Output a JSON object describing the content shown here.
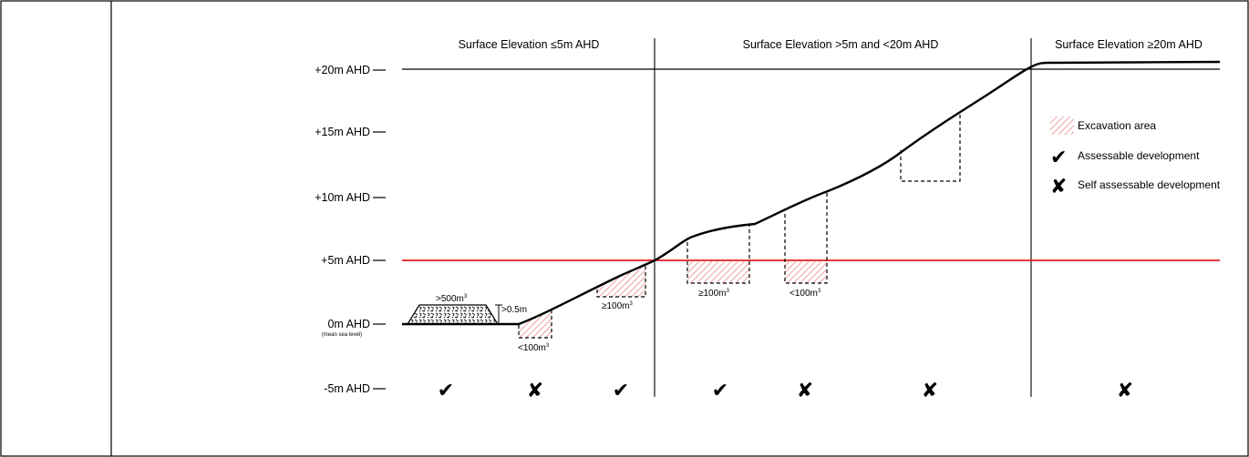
{
  "colors": {
    "line": "#000000",
    "reference": "#e31b1b",
    "hatch": "#e87a7a"
  },
  "zones": [
    {
      "title": "Surface Elevation ≤5m AHD"
    },
    {
      "title": "Surface Elevation >5m and <20m AHD"
    },
    {
      "title": "Surface Elevation ≥20m AHD"
    }
  ],
  "axis": {
    "labels": [
      "+20m AHD",
      "+15m AHD",
      "+10m AHD",
      "+5m AHD",
      "0m AHD",
      "-5m AHD"
    ],
    "sea_level_note": "(mean sea level)"
  },
  "annotations": {
    "stockpile_volume": ">500m",
    "stockpile_height": ">0.5m",
    "exc1_volume": "<100m",
    "exc2_volume": "≥100m",
    "exc3_volume": "≥100m",
    "exc4_volume": "<100m",
    "superscript": "3"
  },
  "legend": {
    "excavation": "Excavation area",
    "assessable": "Assessable development",
    "self_assessable": "Self assessable development",
    "excavation_icon": "hatch-swatch-icon",
    "assessable_icon": "check-mark-icon",
    "self_assessable_icon": "cross-mark-icon"
  },
  "marks": {
    "check": "✔",
    "cross": "✘"
  },
  "outcomes": [
    "check",
    "cross",
    "check",
    "check",
    "cross",
    "cross",
    "cross"
  ]
}
